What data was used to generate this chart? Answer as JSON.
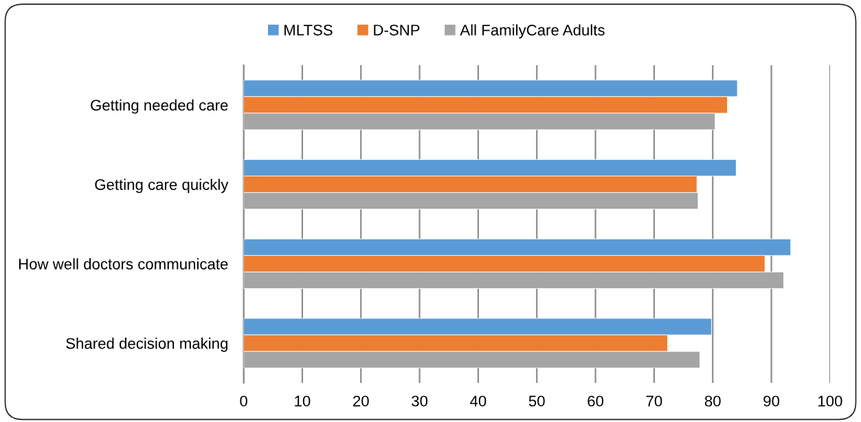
{
  "chart_data": {
    "type": "bar",
    "orientation": "horizontal",
    "categories": [
      "Getting needed care",
      "Getting care quickly",
      "How well doctors communicate",
      "Shared decision making"
    ],
    "series": [
      {
        "name": "MLTSS",
        "color": "#5b9bd5",
        "values": [
          84.2,
          84.0,
          93.3,
          79.8
        ]
      },
      {
        "name": "D-SNP",
        "color": "#ed7d31",
        "values": [
          82.5,
          77.3,
          88.9,
          72.3
        ]
      },
      {
        "name": "All FamilyCare Adults",
        "color": "#a5a5a5",
        "values": [
          80.4,
          77.5,
          92.1,
          77.8
        ]
      }
    ],
    "xlim": [
      0,
      100
    ],
    "xticks": [
      0,
      10,
      20,
      30,
      40,
      50,
      60,
      70,
      80,
      90,
      100
    ],
    "grid": "x",
    "legend": "top"
  }
}
